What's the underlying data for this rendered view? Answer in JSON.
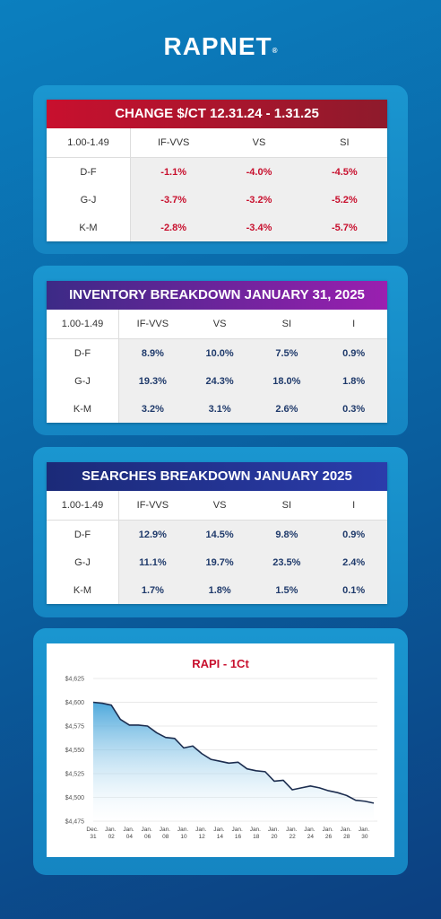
{
  "header": {
    "brand": "RAPNET",
    "brand_mark": "®"
  },
  "tables": [
    {
      "title": "CHANGE $/CT 12.31.24 - 1.31.25",
      "header": [
        "1.00-1.49",
        "IF-VVS",
        "VS",
        "SI"
      ],
      "rows": [
        [
          "D-F",
          "-1.1%",
          "-4.0%",
          "-4.5%"
        ],
        [
          "G-J",
          "-3.7%",
          "-3.2%",
          "-5.2%"
        ],
        [
          "K-M",
          "-2.8%",
          "-3.4%",
          "-5.7%"
        ]
      ]
    },
    {
      "title": "INVENTORY BREAKDOWN JANUARY 31, 2025",
      "header": [
        "1.00-1.49",
        "IF-VVS",
        "VS",
        "SI",
        "I"
      ],
      "rows": [
        [
          "D-F",
          "8.9%",
          "10.0%",
          "7.5%",
          "0.9%"
        ],
        [
          "G-J",
          "19.3%",
          "24.3%",
          "18.0%",
          "1.8%"
        ],
        [
          "K-M",
          "3.2%",
          "3.1%",
          "2.6%",
          "0.3%"
        ]
      ]
    },
    {
      "title": "SEARCHES BREAKDOWN JANUARY 2025",
      "header": [
        "1.00-1.49",
        "IF-VVS",
        "VS",
        "SI",
        "I"
      ],
      "rows": [
        [
          "D-F",
          "12.9%",
          "14.5%",
          "9.8%",
          "0.9%"
        ],
        [
          "G-J",
          "11.1%",
          "19.7%",
          "23.5%",
          "2.4%"
        ],
        [
          "K-M",
          "1.7%",
          "1.8%",
          "1.5%",
          "0.1%"
        ]
      ]
    }
  ],
  "chart_data": {
    "type": "area",
    "title": "RAPI - 1Ct",
    "categories": [
      "Dec. 31",
      null,
      "Jan. 02",
      null,
      "Jan. 04",
      null,
      "Jan. 06",
      null,
      "Jan. 08",
      null,
      "Jan. 10",
      null,
      "Jan. 12",
      null,
      "Jan. 14",
      null,
      "Jan. 16",
      null,
      "Jan. 18",
      null,
      "Jan. 20",
      null,
      "Jan. 22",
      null,
      "Jan. 24",
      null,
      "Jan. 26",
      null,
      "Jan. 28",
      null,
      "Jan. 30",
      null
    ],
    "values": [
      4600,
      4599,
      4597,
      4582,
      4576,
      4576,
      4575,
      4568,
      4563,
      4562,
      4552,
      4554,
      4546,
      4540,
      4538,
      4536,
      4537,
      4530,
      4528,
      4527,
      4517,
      4518,
      4508,
      4510,
      4512,
      4510,
      4507,
      4505,
      4502,
      4497,
      4496,
      4494
    ],
    "color": "#1c2d4f",
    "ylim": [
      4475,
      4625
    ],
    "yticks": [
      {
        "value": 4475,
        "label": "$4,475"
      },
      {
        "value": 4500,
        "label": "$4,500"
      },
      {
        "value": 4525,
        "label": "$4,525"
      },
      {
        "value": 4550,
        "label": "$4,550"
      },
      {
        "value": 4575,
        "label": "$4,575"
      },
      {
        "value": 4600,
        "label": "$4,600"
      },
      {
        "value": 4625,
        "label": "$4,625"
      }
    ],
    "grid": true
  }
}
